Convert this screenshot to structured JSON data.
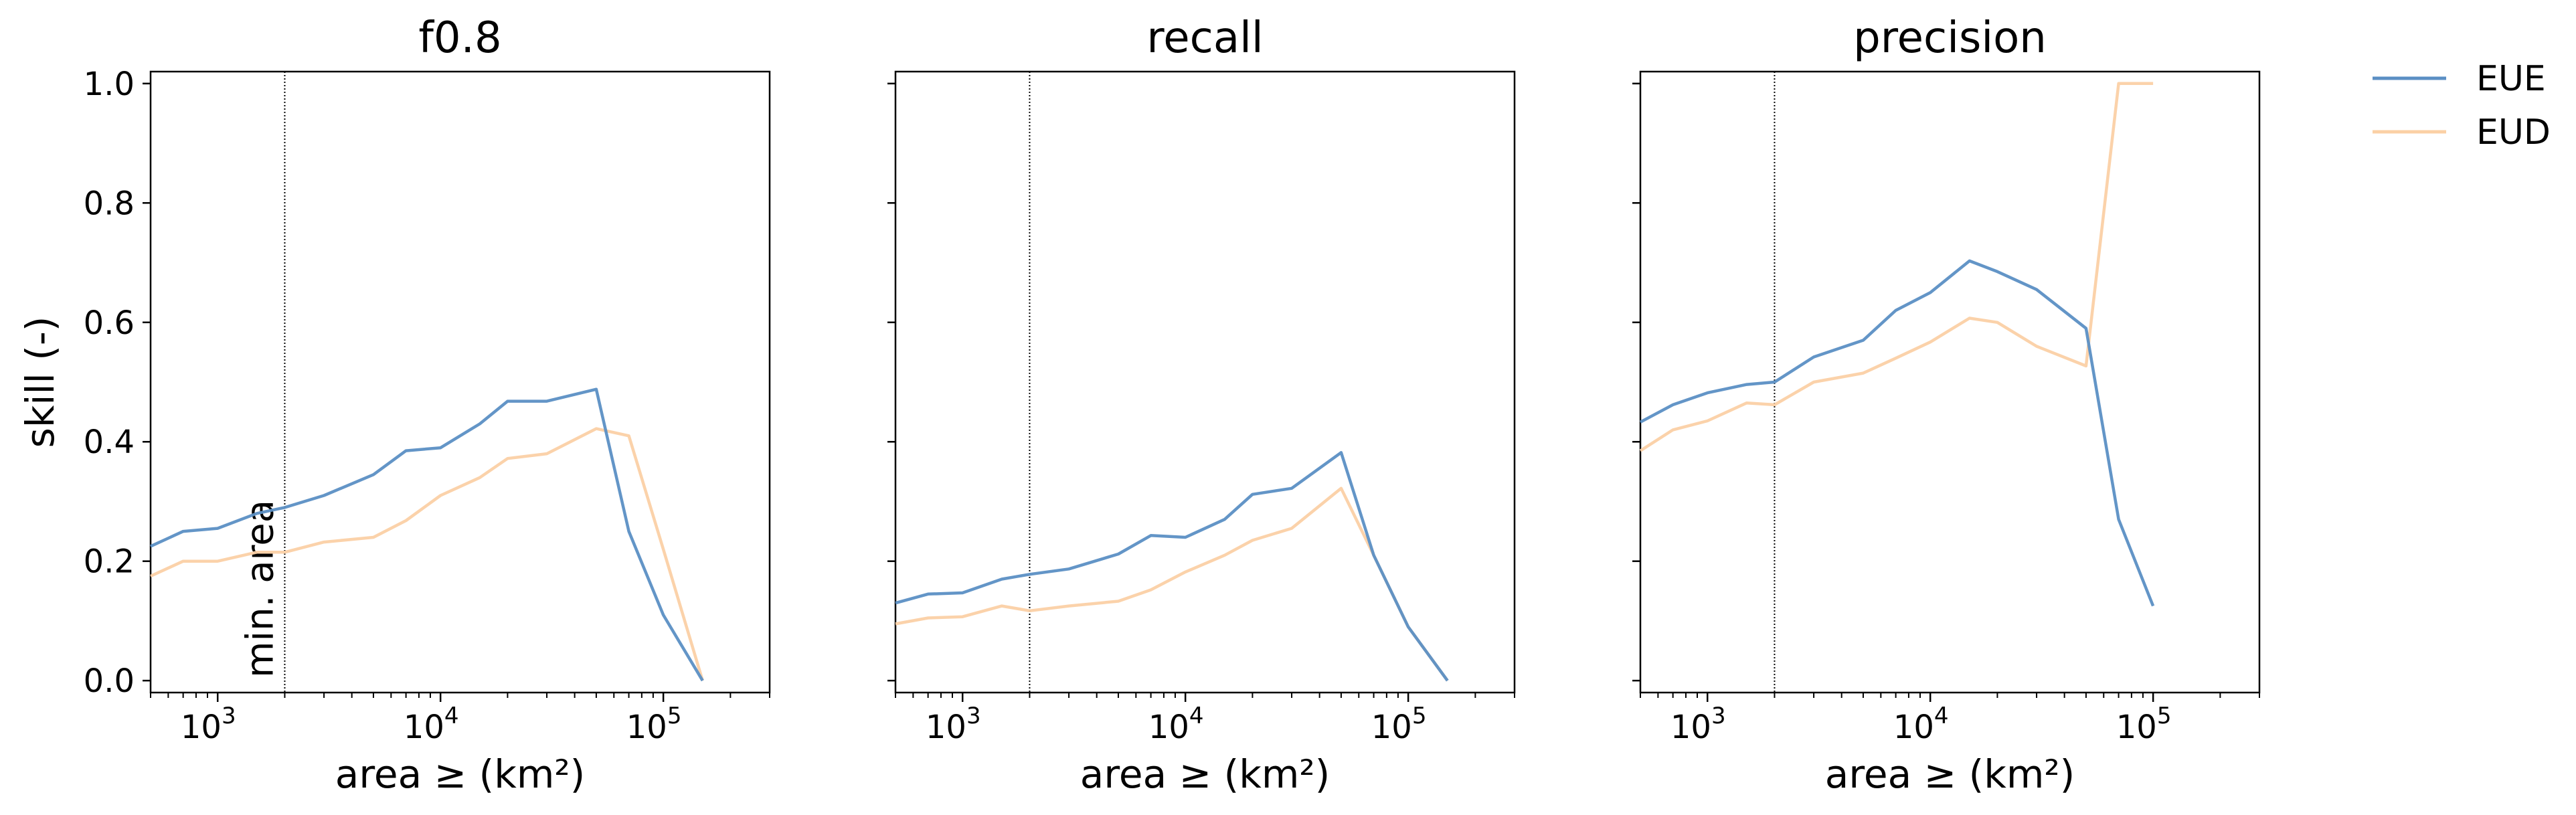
{
  "chart_data": {
    "type": "line",
    "ylabel": "skill (-)",
    "xlabel": "area ≥ (km²)",
    "x_scale": "log",
    "xlim": [
      500,
      300000
    ],
    "ylim": [
      -0.02,
      1.02
    ],
    "yticks": [
      "0.0",
      "0.2",
      "0.4",
      "0.6",
      "0.8",
      "1.0"
    ],
    "xticks": [
      {
        "base": "10",
        "exp": "3"
      },
      {
        "base": "10",
        "exp": "4"
      },
      {
        "base": "10",
        "exp": "5"
      }
    ],
    "grid": false,
    "legend_position": "outside-top-right",
    "legend": [
      {
        "name": "EUE",
        "color": "#5b8fc4"
      },
      {
        "name": "EUD",
        "color": "#fbd0a5"
      }
    ],
    "vline": {
      "x": 2000,
      "label": "min. area"
    },
    "x": [
      500,
      700,
      1000,
      1500,
      2000,
      3000,
      5000,
      7000,
      10000,
      15000,
      20000,
      30000,
      50000,
      70000,
      100000,
      150000
    ],
    "panels": [
      {
        "title": "f0.8",
        "series": [
          {
            "name": "EUE",
            "values": [
              0.225,
              0.25,
              0.255,
              0.28,
              0.29,
              0.31,
              0.345,
              0.385,
              0.39,
              0.43,
              0.468,
              0.468,
              0.488,
              0.25,
              0.11,
              0.0
            ]
          },
          {
            "name": "EUD",
            "values": [
              0.175,
              0.2,
              0.2,
              0.215,
              0.215,
              0.232,
              0.24,
              0.268,
              0.31,
              0.34,
              0.372,
              0.38,
              0.422,
              0.41,
              0.22,
              0.0
            ]
          }
        ]
      },
      {
        "title": "recall",
        "series": [
          {
            "name": "EUE",
            "values": [
              0.13,
              0.145,
              0.147,
              0.17,
              0.178,
              0.187,
              0.212,
              0.243,
              0.24,
              0.27,
              0.312,
              0.322,
              0.382,
              0.21,
              0.09,
              0.0
            ]
          },
          {
            "name": "EUD",
            "values": [
              0.095,
              0.105,
              0.107,
              0.125,
              0.117,
              0.125,
              0.133,
              0.152,
              0.182,
              0.21,
              0.235,
              0.255,
              0.322,
              0.21,
              0.09,
              0.0
            ]
          }
        ]
      },
      {
        "title": "precision",
        "series": [
          {
            "name": "EUE",
            "values": [
              0.433,
              0.462,
              0.482,
              0.496,
              0.5,
              0.542,
              0.57,
              0.62,
              0.65,
              0.703,
              0.685,
              0.655,
              0.59,
              0.27,
              0.125,
              null
            ]
          },
          {
            "name": "EUD",
            "values": [
              0.385,
              0.42,
              0.435,
              0.465,
              0.462,
              0.5,
              0.515,
              0.54,
              0.567,
              0.607,
              0.6,
              0.56,
              0.527,
              1.0,
              1.0,
              null
            ]
          }
        ]
      }
    ]
  }
}
